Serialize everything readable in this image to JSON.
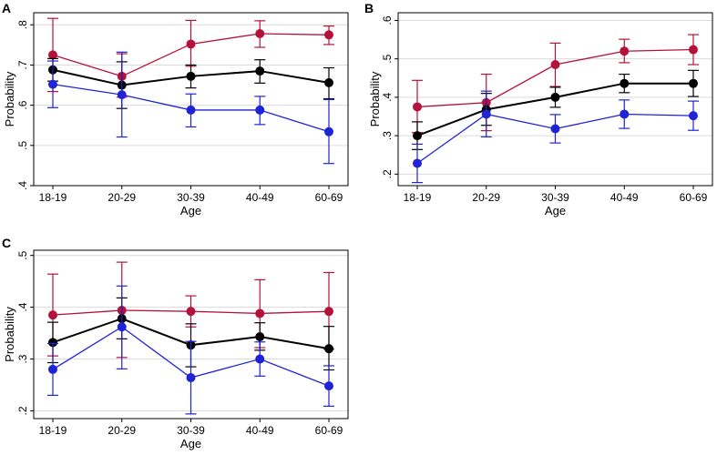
{
  "colors": {
    "red": "#b5123a",
    "black": "#000000",
    "blue": "#1f23d6",
    "grid": "#dcdcdc"
  },
  "chart_data": [
    {
      "panel": "A",
      "type": "line",
      "categories": [
        "18-19",
        "20-29",
        "30-39",
        "40-49",
        "60-69"
      ],
      "xlabel": "Age",
      "ylabel": "Probability",
      "ylim": [
        0.4,
        0.83
      ],
      "yticks": [
        0.4,
        0.5,
        0.6,
        0.7,
        0.8
      ],
      "ytick_labels": [
        ".4",
        ".5",
        ".6",
        ".7",
        ".8"
      ],
      "series": [
        {
          "name": "red",
          "values": [
            0.725,
            0.672,
            0.752,
            0.778,
            0.775
          ],
          "lower": [
            0.634,
            0.62,
            0.697,
            0.744,
            0.751
          ],
          "upper": [
            0.816,
            0.728,
            0.811,
            0.81,
            0.797
          ]
        },
        {
          "name": "black",
          "values": [
            0.688,
            0.65,
            0.672,
            0.685,
            0.656
          ],
          "lower": [
            0.66,
            0.592,
            0.643,
            0.655,
            0.616
          ],
          "upper": [
            0.716,
            0.708,
            0.7,
            0.713,
            0.693
          ]
        },
        {
          "name": "blue",
          "values": [
            0.652,
            0.626,
            0.588,
            0.588,
            0.534
          ],
          "lower": [
            0.594,
            0.521,
            0.546,
            0.552,
            0.455
          ],
          "upper": [
            0.71,
            0.732,
            0.628,
            0.622,
            0.614
          ]
        }
      ]
    },
    {
      "panel": "B",
      "type": "line",
      "categories": [
        "18-19",
        "20-29",
        "30-39",
        "40-49",
        "60-69"
      ],
      "xlabel": "Age",
      "ylabel": "Probability",
      "ylim": [
        0.17,
        0.62
      ],
      "yticks": [
        0.2,
        0.3,
        0.4,
        0.5,
        0.6
      ],
      "ytick_labels": [
        ".2",
        ".3",
        ".4",
        ".5",
        ".6"
      ],
      "series": [
        {
          "name": "red",
          "values": [
            0.375,
            0.386,
            0.485,
            0.52,
            0.524
          ],
          "lower": [
            0.308,
            0.313,
            0.428,
            0.49,
            0.485
          ],
          "upper": [
            0.444,
            0.46,
            0.541,
            0.551,
            0.563
          ]
        },
        {
          "name": "black",
          "values": [
            0.3,
            0.368,
            0.4,
            0.436,
            0.436
          ],
          "lower": [
            0.264,
            0.327,
            0.374,
            0.412,
            0.402
          ],
          "upper": [
            0.336,
            0.41,
            0.426,
            0.46,
            0.47
          ]
        },
        {
          "name": "blue",
          "values": [
            0.228,
            0.356,
            0.318,
            0.356,
            0.352
          ],
          "lower": [
            0.178,
            0.297,
            0.281,
            0.319,
            0.314
          ],
          "upper": [
            0.278,
            0.416,
            0.355,
            0.393,
            0.39
          ]
        }
      ]
    },
    {
      "panel": "C",
      "type": "line",
      "categories": [
        "18-19",
        "20-29",
        "30-39",
        "40-49",
        "60-69"
      ],
      "xlabel": "Age",
      "ylabel": "Probability",
      "ylim": [
        0.185,
        0.51
      ],
      "yticks": [
        0.2,
        0.3,
        0.4,
        0.5
      ],
      "ytick_labels": [
        ".2",
        ".3",
        ".4",
        ".5"
      ],
      "series": [
        {
          "name": "red",
          "values": [
            0.385,
            0.394,
            0.392,
            0.388,
            0.392
          ],
          "lower": [
            0.306,
            0.303,
            0.362,
            0.322,
            0.319
          ],
          "upper": [
            0.464,
            0.487,
            0.422,
            0.453,
            0.467
          ]
        },
        {
          "name": "black",
          "values": [
            0.332,
            0.378,
            0.327,
            0.343,
            0.32
          ],
          "lower": [
            0.293,
            0.339,
            0.285,
            0.317,
            0.279
          ],
          "upper": [
            0.371,
            0.418,
            0.368,
            0.37,
            0.363
          ]
        },
        {
          "name": "blue",
          "values": [
            0.28,
            0.362,
            0.264,
            0.3,
            0.248
          ],
          "lower": [
            0.23,
            0.281,
            0.194,
            0.267,
            0.209
          ],
          "upper": [
            0.33,
            0.441,
            0.334,
            0.333,
            0.287
          ]
        }
      ]
    }
  ]
}
